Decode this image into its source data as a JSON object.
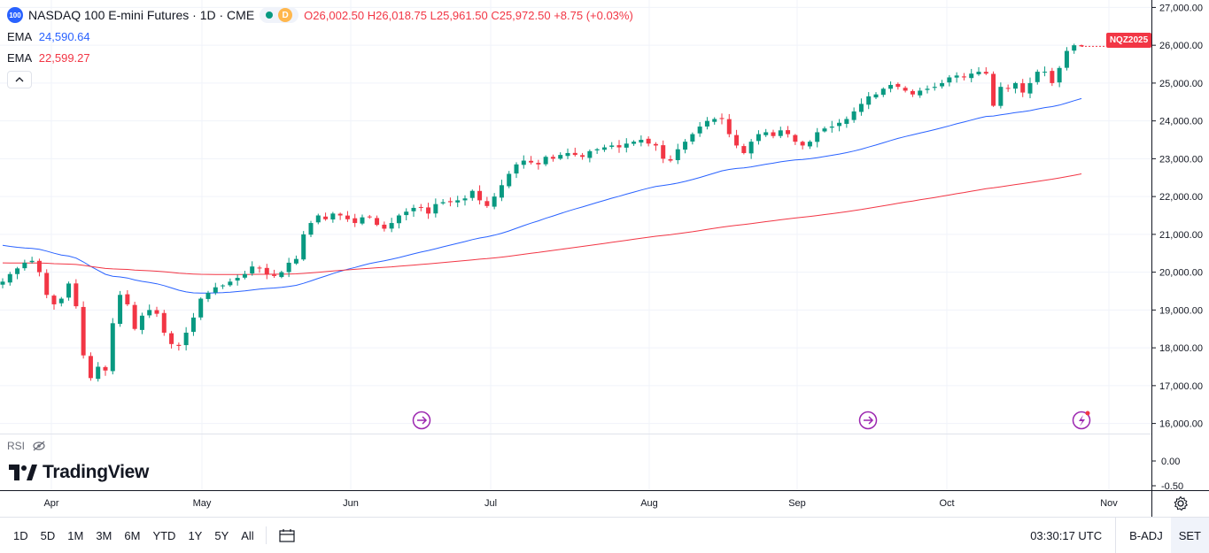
{
  "header": {
    "symbol_logo": "100",
    "title": "NASDAQ 100 E-mini Futures · 1D · CME",
    "timeframe_badge": "D",
    "ohlc": {
      "open_label": "O",
      "open": "26,002.50",
      "high_label": "H",
      "high": "26,018.75",
      "low_label": "L",
      "low": "25,961.50",
      "close_label": "C",
      "close": "25,972.50",
      "change": "+8.75 (+0.03%)"
    }
  },
  "indicators": [
    {
      "name": "EMA",
      "value": "24,590.64",
      "color": "#2962ff"
    },
    {
      "name": "EMA",
      "value": "22,599.27",
      "color": "#f23645"
    }
  ],
  "price_tag": {
    "text": "NQZ2025",
    "color": "#f23645"
  },
  "rsi": {
    "label": "RSI",
    "ticks": [
      "0.00",
      "-0.50"
    ]
  },
  "branding": {
    "text": "TradingView"
  },
  "bottom_bar": {
    "ranges": [
      "1D",
      "5D",
      "1M",
      "3M",
      "6M",
      "YTD",
      "1Y",
      "5Y",
      "All"
    ],
    "clock": "03:30:17 UTC",
    "adj": "B-ADJ",
    "session": "SET"
  },
  "colors": {
    "up": "#089981",
    "down": "#f23645",
    "ema_fast": "#2962ff",
    "ema_slow": "#f23645",
    "grid": "#f0f3fa",
    "marker": "#9c27b0"
  },
  "chart_data": {
    "type": "candlestick",
    "title": "NASDAQ 100 E-mini Futures · 1D · CME",
    "y_axis": {
      "ticks": [
        "27,000.00",
        "26,000.00",
        "25,000.00",
        "24,000.00",
        "23,000.00",
        "22,000.00",
        "21,000.00",
        "20,000.00",
        "19,000.00",
        "18,000.00",
        "17,000.00",
        "16,000.00"
      ],
      "range": [
        15780,
        27150
      ],
      "position": "right"
    },
    "x_axis": {
      "labels": [
        "Apr",
        "May",
        "Jun",
        "Jul",
        "Aug",
        "Sep",
        "Oct",
        "Nov"
      ]
    },
    "close_series": [
      19750,
      19950,
      20100,
      20250,
      20300,
      20000,
      19400,
      19150,
      19300,
      19700,
      19100,
      17800,
      17200,
      17500,
      17400,
      18650,
      19400,
      19150,
      18500,
      18850,
      19000,
      18900,
      18400,
      18100,
      18050,
      18400,
      18800,
      19300,
      19450,
      19600,
      19650,
      19750,
      19850,
      19950,
      20150,
      20100,
      19950,
      19900,
      20000,
      20250,
      20350,
      21000,
      21300,
      21500,
      21400,
      21550,
      21500,
      21400,
      21300,
      21450,
      21450,
      21250,
      21150,
      21300,
      21500,
      21600,
      21700,
      21700,
      21550,
      21800,
      21850,
      21850,
      21900,
      21950,
      22150,
      21900,
      21750,
      22000,
      22300,
      22600,
      22850,
      22950,
      22900,
      22850,
      23050,
      23000,
      23100,
      23150,
      23100,
      23050,
      23200,
      23250,
      23300,
      23350,
      23300,
      23400,
      23450,
      23500,
      23400,
      23350,
      23000,
      22950,
      23250,
      23450,
      23650,
      23850,
      24000,
      24050,
      24050,
      23650,
      23350,
      23150,
      23450,
      23650,
      23700,
      23600,
      23750,
      23650,
      23450,
      23350,
      23450,
      23700,
      23800,
      23850,
      23950,
      24050,
      24250,
      24450,
      24650,
      24700,
      24850,
      24950,
      24900,
      24800,
      24700,
      24800,
      24850,
      24900,
      25000,
      25150,
      25200,
      25150,
      25250,
      25300,
      25250,
      24400,
      24900,
      24850,
      25000,
      24750,
      25000,
      25300,
      25300,
      25000,
      25400,
      25850,
      26000,
      25972.5
    ],
    "ema_fast": {
      "name": "EMA",
      "value": 24590.64,
      "from": 20750,
      "to": 24590.64
    },
    "ema_slow": {
      "name": "EMA",
      "value": 22599.27,
      "from": 20250,
      "to": 22599.27
    },
    "last_price": 25972.5
  }
}
